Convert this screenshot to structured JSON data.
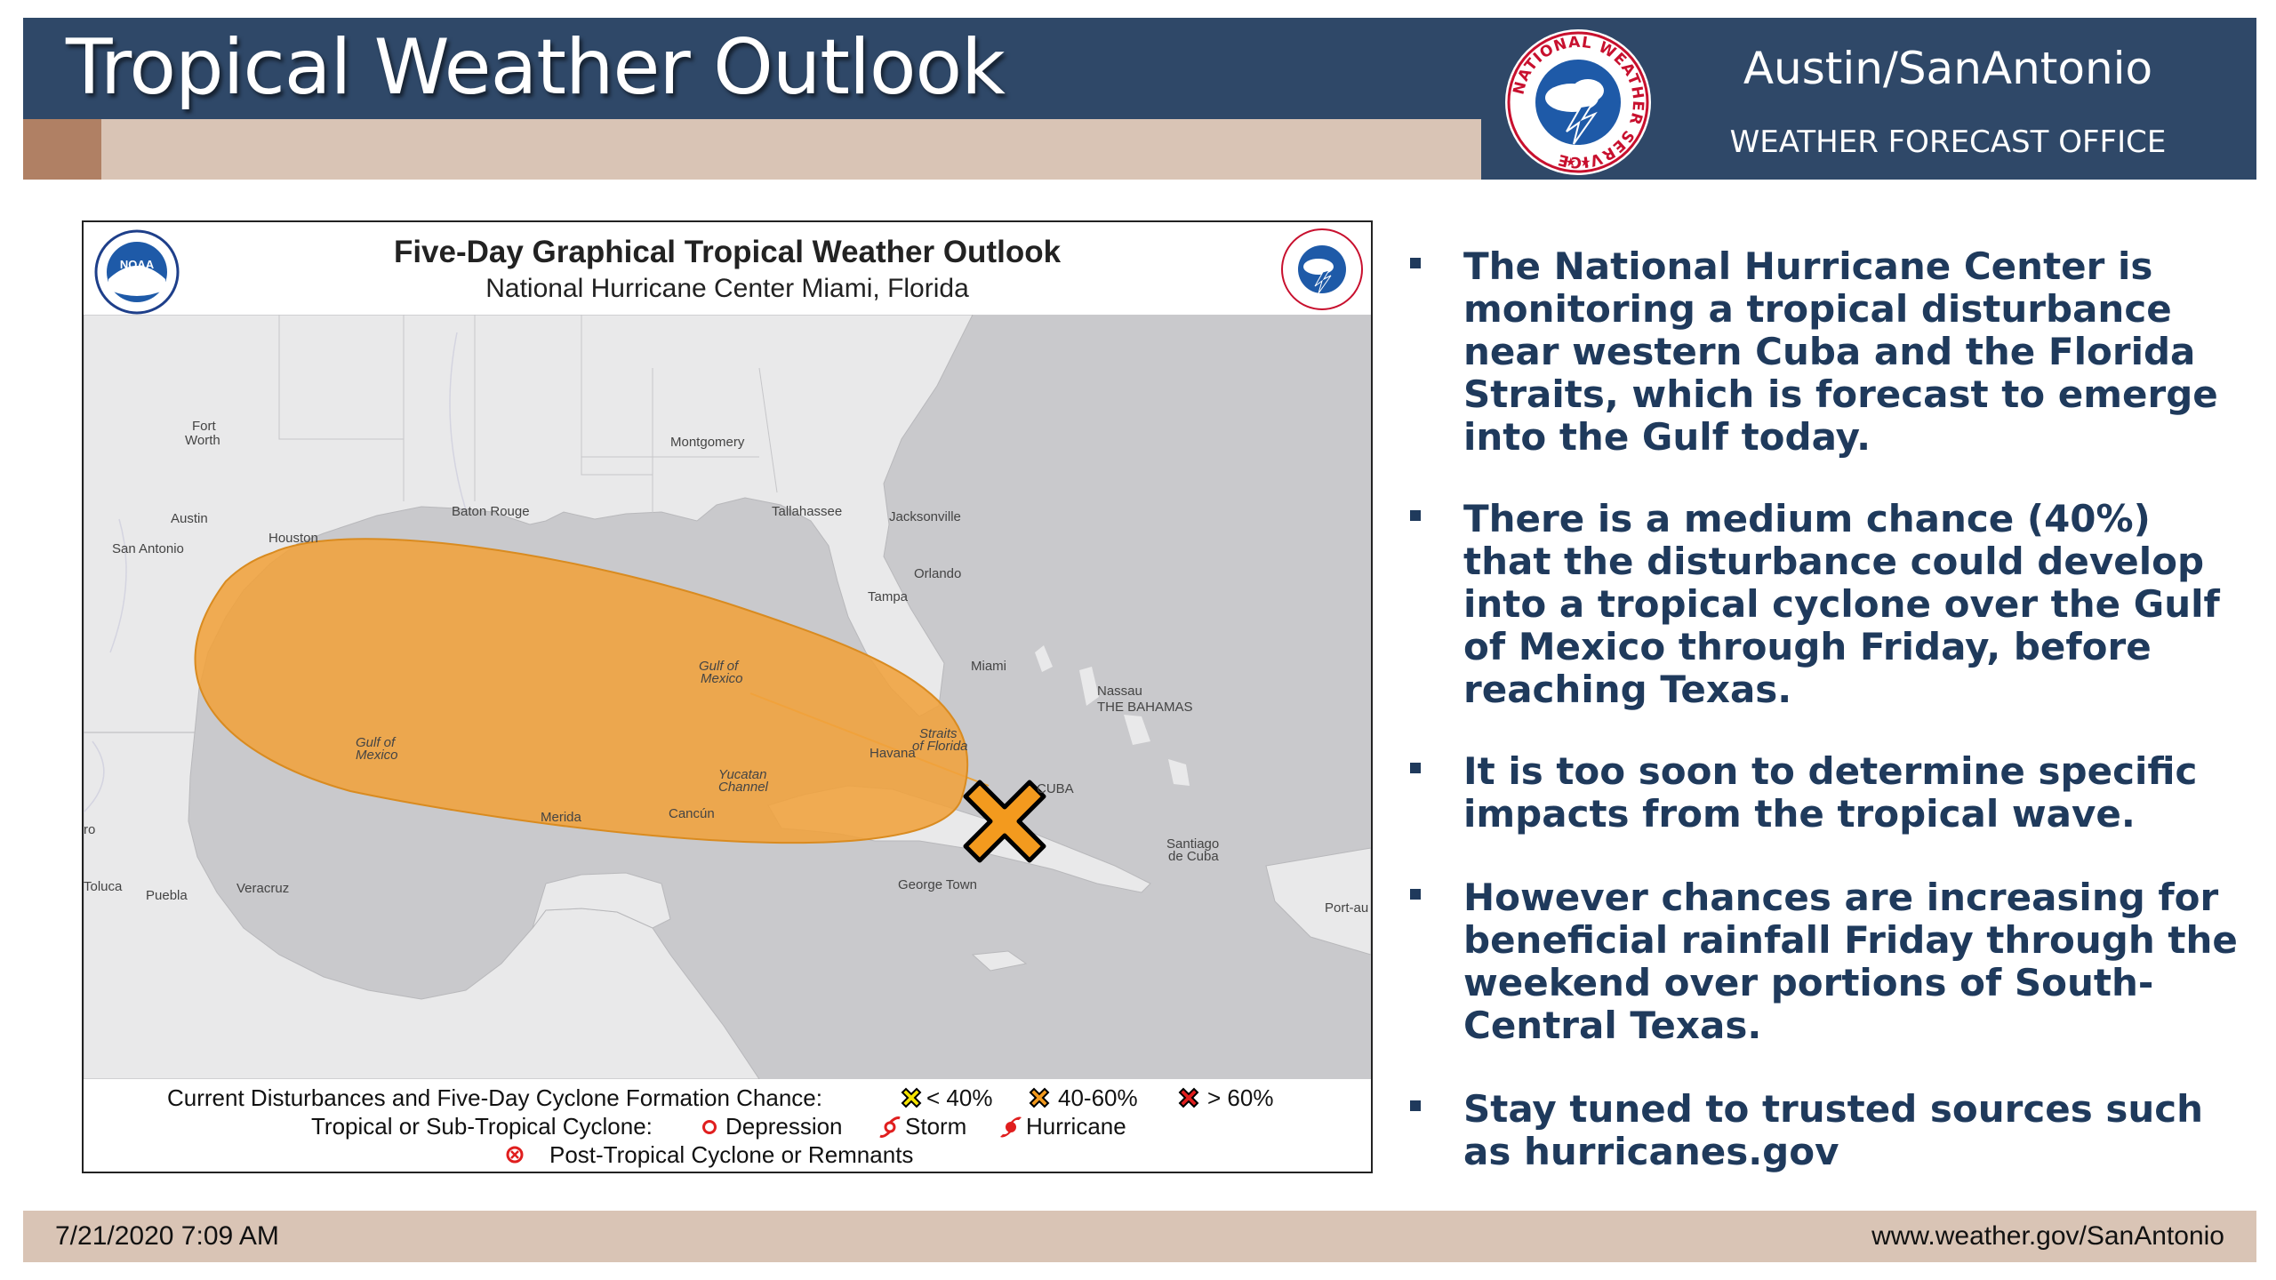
{
  "header": {
    "title": "Tropical Weather Outlook",
    "office_name": "Austin/SanAntonio",
    "office_sub": "WEATHER FORECAST OFFICE",
    "logo_text": "NATIONAL WEATHER SERVICE"
  },
  "map": {
    "title": "Five-Day Graphical Tropical Weather Outlook",
    "subtitle": "National Hurricane Center  Miami, Florida",
    "noaa_logo_text": "NOAA",
    "labels": {
      "fort_worth_1": "Fort",
      "fort_worth_2": "Worth",
      "montgomery": "Montgomery",
      "austin": "Austin",
      "baton_rouge": "Baton Rouge",
      "tallahassee": "Tallahassee",
      "jacksonville": "Jacksonville",
      "san_antonio": "San Antonio",
      "houston": "Houston",
      "orlando": "Orlando",
      "tampa": "Tampa",
      "miami": "Miami",
      "nassau": "Nassau",
      "bahamas": "THE BAHAMAS",
      "havana": "Havana",
      "cuba": "CUBA",
      "merida": "Merida",
      "cancun": "Cancún",
      "santiago_1": "Santiago",
      "santiago_2": "de Cuba",
      "george_town": "George Town",
      "port_au": "Port-au",
      "toluca": "Toluca",
      "puebla": "Puebla",
      "veracruz": "Veracruz",
      "ro": "ro",
      "gulf_1_a": "Gulf of",
      "gulf_1_b": "Mexico",
      "gulf_2_a": "Gulf of",
      "gulf_2_b": "Mexico",
      "straits_a": "Straits",
      "straits_b": "of Florida",
      "yucatan_a": "Yucatan",
      "yucatan_b": "Channel"
    },
    "disturbance": {
      "chance_category": "40-60%",
      "area_color": "#f0a23c",
      "marker_color": "#f39a1e"
    },
    "legend": {
      "current_label": "Current Disturbances and Five-Day Cyclone Formation Chance:",
      "low": "< 40%",
      "medium": "40-60%",
      "high": "> 60%",
      "cyclone_label": "Tropical or Sub-Tropical Cyclone:",
      "depression": "Depression",
      "storm": "Storm",
      "hurricane": "Hurricane",
      "post_tropical": "Post-Tropical Cyclone or Remnants",
      "low_color": "#f5e400",
      "medium_color": "#f39a1e",
      "high_color": "#e01e1e"
    }
  },
  "bullets": [
    {
      "text": "The National Hurricane Center is monitoring a tropical disturbance near western Cuba and the Florida Straits, which is forecast to emerge into the Gulf today."
    },
    {
      "text": "There is a medium chance (40%) that the disturbance could develop into a tropical cyclone over the Gulf of Mexico through Friday, before reaching Texas."
    },
    {
      "text": "It is too soon to determine specific impacts from the tropical wave."
    },
    {
      "text": "However chances are increasing for beneficial rainfall Friday through the weekend over portions of South-Central Texas."
    },
    {
      "text": "Stay tuned to trusted sources such as hurricanes.gov"
    }
  ],
  "footer": {
    "date": "7/21/2020 7:09 AM",
    "url": "www.weather.gov/SanAntonio"
  },
  "colors": {
    "header_blue": "#2f4868",
    "header_tan": "#d9c4b5",
    "bullet_text": "#1f3a5c"
  }
}
